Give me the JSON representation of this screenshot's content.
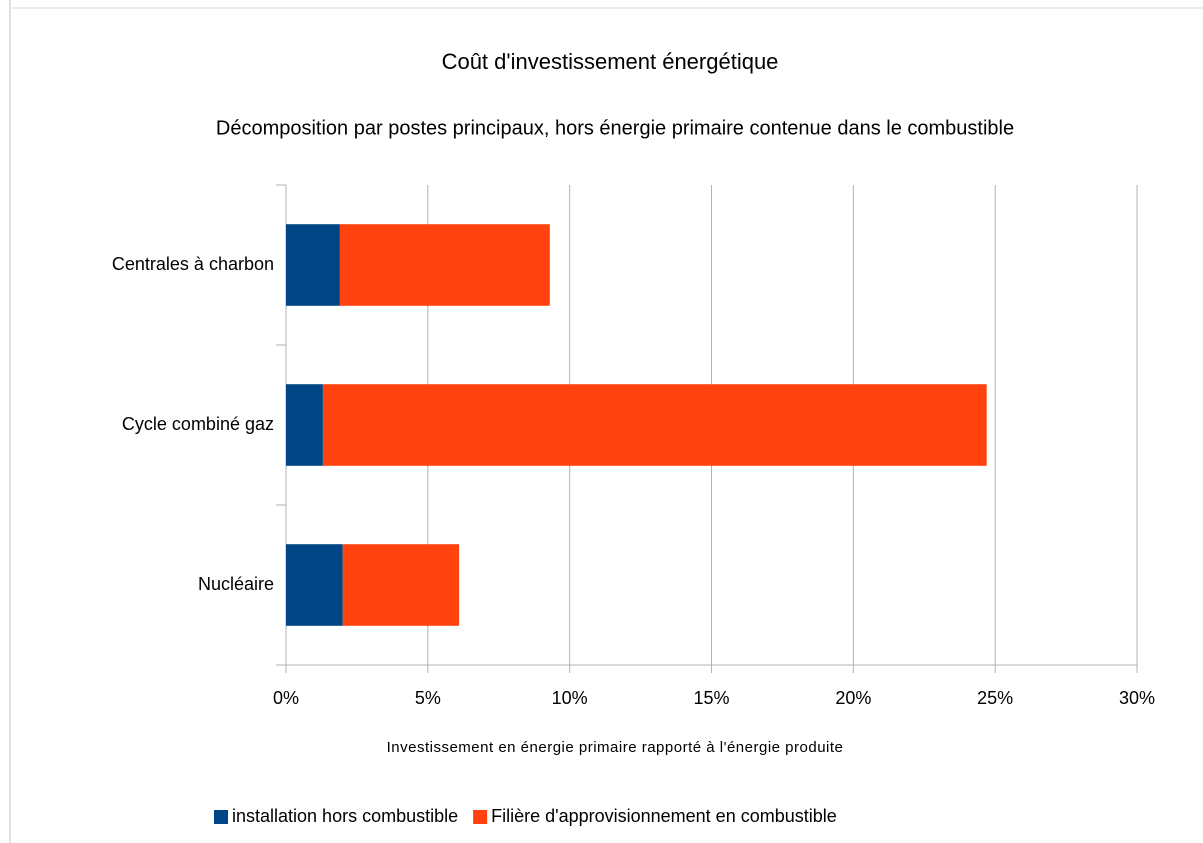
{
  "chart_data": {
    "type": "stacked-bar-horizontal",
    "title": "Coût d'investissement énergétique",
    "subtitle": "Décomposition par postes principaux, hors énergie primaire contenue dans le combustible",
    "x_label": "Investissement en énergie primaire rapporté à l'énergie produite",
    "categories": [
      "Centrales à charbon",
      "Cycle combiné gaz",
      "Nucléaire"
    ],
    "series": [
      {
        "name": "installation hors combustible",
        "color": "#004586",
        "values": [
          1.9,
          1.3,
          2.0
        ]
      },
      {
        "name": "Filière d'approvisionnement en combustible",
        "color": "#ff420e",
        "values": [
          7.4,
          23.4,
          4.1
        ]
      }
    ],
    "xlim": [
      0,
      30
    ],
    "xticks": [
      {
        "value": 0,
        "label": "0%"
      },
      {
        "value": 5,
        "label": "5%"
      },
      {
        "value": 10,
        "label": "10%"
      },
      {
        "value": 15,
        "label": "15%"
      },
      {
        "value": 20,
        "label": "20%"
      },
      {
        "value": 25,
        "label": "25%"
      },
      {
        "value": 30,
        "label": "30%"
      }
    ],
    "grid": true,
    "legend": "bottom"
  }
}
